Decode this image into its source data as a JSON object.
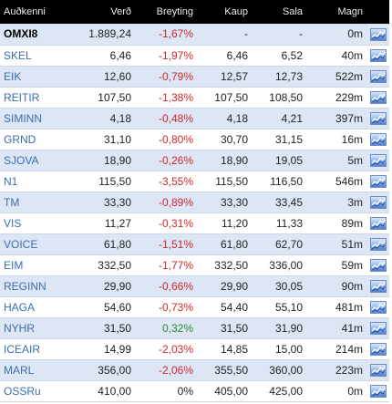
{
  "columns": {
    "symbol": "Auðkenni",
    "price": "Verð",
    "change": "Breyting",
    "bid": "Kaup",
    "ask": "Sala",
    "volume": "Magn"
  },
  "colors": {
    "negative": "#d0282d",
    "positive": "#2a8a2a",
    "symbol_link": "#3a6fb0",
    "row_alt": "#dde6f4",
    "header_bg": "#000000"
  },
  "rows": [
    {
      "symbol": "OMXI8",
      "price": "1.889,24",
      "change": "-1,67%",
      "bid": "-",
      "ask": "-",
      "volume": "0m",
      "trend": "negative",
      "bold": true,
      "icon": "chart-icon"
    },
    {
      "symbol": "SKEL",
      "price": "6,46",
      "change": "-1,97%",
      "bid": "6,46",
      "ask": "6,52",
      "volume": "40m",
      "trend": "negative",
      "bold": false,
      "icon": "chart-icon"
    },
    {
      "symbol": "EIK",
      "price": "12,60",
      "change": "-0,79%",
      "bid": "12,57",
      "ask": "12,73",
      "volume": "522m",
      "trend": "negative",
      "bold": false,
      "icon": "chart-icon"
    },
    {
      "symbol": "REITIR",
      "price": "107,50",
      "change": "-1,38%",
      "bid": "107,50",
      "ask": "108,50",
      "volume": "229m",
      "trend": "negative",
      "bold": false,
      "icon": "chart-icon"
    },
    {
      "symbol": "SIMINN",
      "price": "4,18",
      "change": "-0,48%",
      "bid": "4,18",
      "ask": "4,21",
      "volume": "397m",
      "trend": "negative",
      "bold": false,
      "icon": "chart-icon"
    },
    {
      "symbol": "GRND",
      "price": "31,10",
      "change": "-0,80%",
      "bid": "30,70",
      "ask": "31,15",
      "volume": "16m",
      "trend": "negative",
      "bold": false,
      "icon": "chart-icon"
    },
    {
      "symbol": "SJOVA",
      "price": "18,90",
      "change": "-0,26%",
      "bid": "18,90",
      "ask": "19,05",
      "volume": "5m",
      "trend": "negative",
      "bold": false,
      "icon": "chart-icon"
    },
    {
      "symbol": "N1",
      "price": "115,50",
      "change": "-3,55%",
      "bid": "115,50",
      "ask": "116,50",
      "volume": "546m",
      "trend": "negative",
      "bold": false,
      "icon": "chart-icon"
    },
    {
      "symbol": "TM",
      "price": "33,30",
      "change": "-0,89%",
      "bid": "33,30",
      "ask": "33,45",
      "volume": "3m",
      "trend": "negative",
      "bold": false,
      "icon": "chart-icon"
    },
    {
      "symbol": "VIS",
      "price": "11,27",
      "change": "-0,31%",
      "bid": "11,20",
      "ask": "11,33",
      "volume": "89m",
      "trend": "negative",
      "bold": false,
      "icon": "chart-icon"
    },
    {
      "symbol": "VOICE",
      "price": "61,80",
      "change": "-1,51%",
      "bid": "61,80",
      "ask": "62,70",
      "volume": "51m",
      "trend": "negative",
      "bold": false,
      "icon": "chart-icon"
    },
    {
      "symbol": "EIM",
      "price": "332,50",
      "change": "-1,77%",
      "bid": "332,50",
      "ask": "336,00",
      "volume": "59m",
      "trend": "negative",
      "bold": false,
      "icon": "chart-icon"
    },
    {
      "symbol": "REGINN",
      "price": "29,90",
      "change": "-0,66%",
      "bid": "29,90",
      "ask": "30,05",
      "volume": "90m",
      "trend": "negative",
      "bold": false,
      "icon": "chart-icon"
    },
    {
      "symbol": "HAGA",
      "price": "54,60",
      "change": "-0,73%",
      "bid": "54,40",
      "ask": "55,10",
      "volume": "481m",
      "trend": "negative",
      "bold": false,
      "icon": "chart-icon"
    },
    {
      "symbol": "NYHR",
      "price": "31,50",
      "change": "0,32%",
      "bid": "31,50",
      "ask": "31,90",
      "volume": "41m",
      "trend": "positive",
      "bold": false,
      "icon": "chart-icon"
    },
    {
      "symbol": "ICEAIR",
      "price": "14,99",
      "change": "-2,03%",
      "bid": "14,85",
      "ask": "15,00",
      "volume": "214m",
      "trend": "negative",
      "bold": false,
      "icon": "chart-icon"
    },
    {
      "symbol": "MARL",
      "price": "356,00",
      "change": "-2,06%",
      "bid": "355,50",
      "ask": "360,00",
      "volume": "223m",
      "trend": "negative",
      "bold": false,
      "icon": "chart-icon"
    },
    {
      "symbol": "OSSRu",
      "price": "410,00",
      "change": "0%",
      "bid": "405,00",
      "ask": "425,00",
      "volume": "0m",
      "trend": "zero",
      "bold": false,
      "icon": "chart-icon"
    }
  ]
}
